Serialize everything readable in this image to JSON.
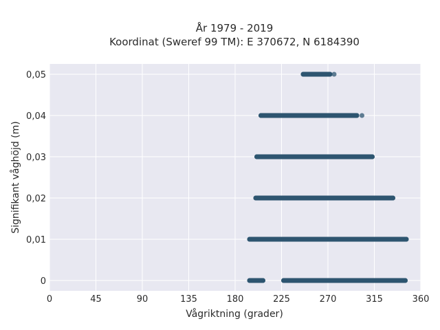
{
  "chart_data": {
    "type": "scatter",
    "title_line1": "År 1979 - 2019",
    "title_line2": "Koordinat (Sweref 99 TM): E 370672, N 6184390",
    "xlabel": "Vågriktning (grader)",
    "ylabel": "Signifikant våghöjd (m)",
    "xlim": [
      0,
      360
    ],
    "ylim": [
      -0.0025,
      0.0525
    ],
    "xticks": [
      0,
      45,
      90,
      135,
      180,
      225,
      270,
      315,
      360
    ],
    "xtick_labels": [
      "0",
      "45",
      "90",
      "135",
      "180",
      "225",
      "270",
      "315",
      "360"
    ],
    "yticks": [
      0,
      0.01,
      0.02,
      0.03,
      0.04,
      0.05
    ],
    "ytick_labels": [
      "0",
      "0,01",
      "0,02",
      "0,03",
      "0,04",
      "0,05"
    ],
    "grid": true,
    "marker_color": "#2e5570",
    "background_color": "#e8e8f1",
    "bands": [
      {
        "y": 0.05,
        "x_min": 246,
        "x_max": 272,
        "outliers": [
          276
        ]
      },
      {
        "y": 0.04,
        "x_min": 205,
        "x_max": 298,
        "outliers": [
          303
        ]
      },
      {
        "y": 0.03,
        "x_min": 201,
        "x_max": 313,
        "outliers": []
      },
      {
        "y": 0.02,
        "x_min": 200,
        "x_max": 333,
        "outliers": []
      },
      {
        "y": 0.01,
        "x_min": 194,
        "x_max": 346,
        "outliers": []
      },
      {
        "y": 0.0,
        "x_min": 227,
        "x_max": 345,
        "outliers": []
      },
      {
        "y": 0.0,
        "x_min": 194,
        "x_max": 207,
        "outliers": []
      }
    ]
  }
}
